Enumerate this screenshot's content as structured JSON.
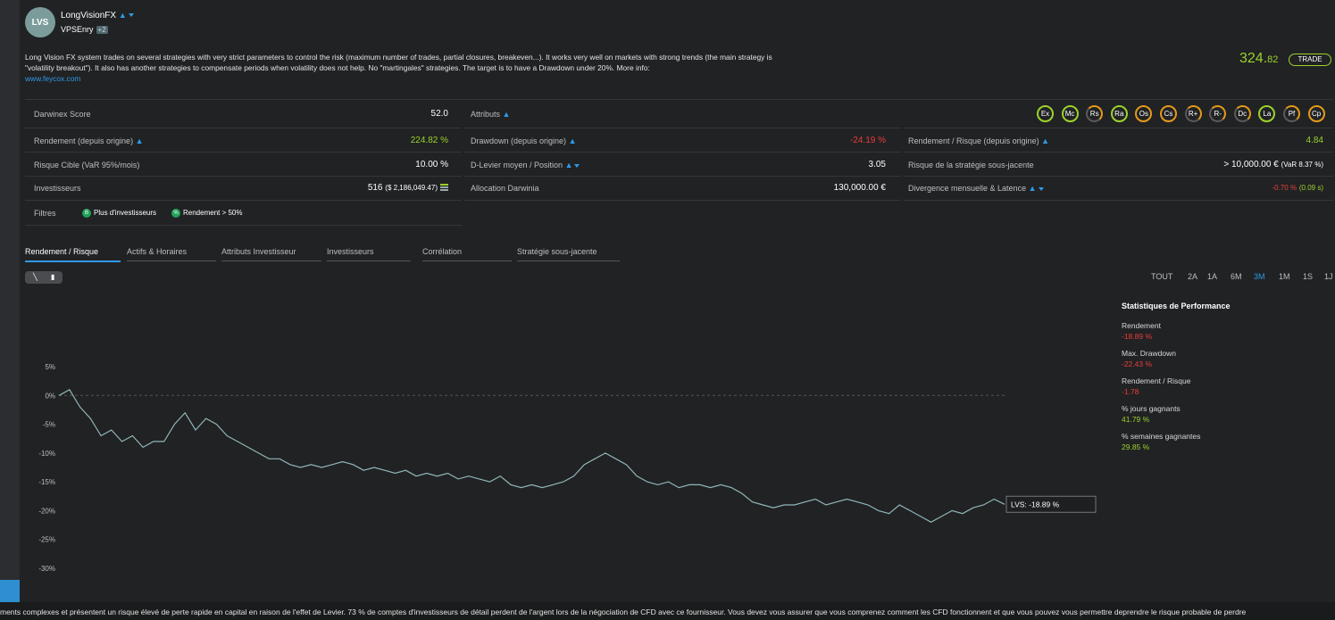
{
  "header": {
    "avatar": "LVS",
    "name": "LongVisionFX",
    "owner": "VPSEnry",
    "owner_badge": "+2",
    "description": "Long Vision FX system trades on several strategies with very strict parameters to control the risk (maximum number of trades, partial closures, breakeven...). It works very well on markets with strong trends (the main strategy is \"volatility breakout\"). It also has another strategies to compensate periods when volatility does not help. No \"martingales\" strategies. The target is to have a Drawdown under 20%. More info:",
    "link": "www.feycox.com",
    "price_main": "324.",
    "price_dec": "82",
    "trade_label": "TRADE"
  },
  "stats": {
    "score_label": "Darwinex Score",
    "score_value": "52.0",
    "attributes_label": "Attributs",
    "attributes": [
      {
        "code": "Ex",
        "color": "green"
      },
      {
        "code": "Mc",
        "color": "green"
      },
      {
        "code": "Rs",
        "color": "half"
      },
      {
        "code": "Ra",
        "color": "green"
      },
      {
        "code": "Os",
        "color": "orange"
      },
      {
        "code": "Cs",
        "color": "orange"
      },
      {
        "code": "R+",
        "color": "half"
      },
      {
        "code": "R-",
        "color": "half"
      },
      {
        "code": "Dc",
        "color": "half"
      },
      {
        "code": "La",
        "color": "green"
      },
      {
        "code": "Pf",
        "color": "half"
      },
      {
        "code": "Cp",
        "color": "orange"
      }
    ],
    "return_label": "Rendement (depuis origine)",
    "return_value": "224.82 %",
    "drawdown_label": "Drawdown (depuis origine)",
    "drawdown_value": "-24.19 %",
    "rr_label": "Rendement / Risque (depuis origine)",
    "rr_value": "4.84",
    "risk_label": "Risque Cible (VaR 95%/mois)",
    "risk_value": "10.00 %",
    "leverage_label": "D-Levier moyen / Position",
    "leverage_value": "3.05",
    "strategy_risk_label": "Risque de la stratégie sous-jacente",
    "strategy_risk_value": "> 10,000.00 €",
    "strategy_risk_var": "(VaR 8.37 %)",
    "investors_label": "Investisseurs",
    "investors_value": "516",
    "investors_amount": "($ 2,186,049.47)",
    "allocation_label": "Allocation Darwinia",
    "allocation_value": "130,000.00 €",
    "divergence_label": "Divergence mensuelle & Latence",
    "divergence_value": "-0.70 %",
    "latency_value": "(0.09 s)",
    "filters_label": "Filtres",
    "filter1": "Plus d'investisseurs",
    "filter2": "Rendement > 50%"
  },
  "tabs": [
    "Rendement / Risque",
    "Actifs & Horaires",
    "Attributs Investisseur",
    "Investisseurs",
    "Corrélation",
    "Stratégie sous-jacente"
  ],
  "ranges": [
    "TOUT",
    "2A",
    "1A",
    "6M",
    "3M",
    "1M",
    "1S",
    "1J"
  ],
  "active_range": "3M",
  "chart_data": {
    "type": "line",
    "series": [
      {
        "name": "LVS",
        "values": [
          0,
          1,
          -2,
          -4,
          -7,
          -6,
          -8,
          -7,
          -9,
          -8,
          -8,
          -5,
          -3,
          -6,
          -4,
          -5,
          -7,
          -8,
          -9,
          -10,
          -11,
          -11,
          -12,
          -12.5,
          -12,
          -12.5,
          -12,
          -11.5,
          -12,
          -13,
          -12.5,
          -13,
          -13.5,
          -13,
          -14,
          -13.5,
          -14,
          -13.5,
          -14.5,
          -14,
          -14.5,
          -15,
          -14,
          -15.5,
          -16,
          -15.5,
          -16,
          -15.5,
          -15,
          -14,
          -12,
          -11,
          -10,
          -11,
          -12,
          -14,
          -15,
          -15.5,
          -15,
          -16,
          -15.5,
          -15.5,
          -16,
          -15.5,
          -16,
          -17,
          -18.5,
          -19,
          -19.5,
          -19,
          -19,
          -18.5,
          -18,
          -19,
          -18.5,
          -18,
          -18.5,
          -19,
          -20,
          -20.5,
          -19,
          -20,
          -21,
          -22,
          -21,
          -20,
          -20.5,
          -19.5,
          -19,
          -18,
          -18.89
        ]
      }
    ],
    "ylim": [
      -30,
      5
    ],
    "yticks": [
      "5%",
      "0%",
      "-5%",
      "-10%",
      "-15%",
      "-20%",
      "-25%",
      "-30%"
    ],
    "tooltip": "LVS: -18.89 %"
  },
  "performance": {
    "title": "Statistiques de Performance",
    "items": [
      {
        "label": "Rendement",
        "value": "-18.89 %",
        "color": "red"
      },
      {
        "label": "Max. Drawdown",
        "value": "-22.43 %",
        "color": "red"
      },
      {
        "label": "Rendement / Risque",
        "value": "-1.78",
        "color": "red"
      },
      {
        "label": "% jours gagnants",
        "value": "41.79 %",
        "color": "green"
      },
      {
        "label": "% semaines gagnantes",
        "value": "29.85 %",
        "color": "green"
      }
    ]
  },
  "disclaimer": "ments complexes et présentent un risque élevé de perte rapide en capital en raison de l'effet de Levier. 73 % de comptes d'investisseurs de détail perdent de l'argent lors de la négociation de CFD avec ce fournisseur. Vous devez vous assurer que vous comprenez comment les CFD fonctionnent et que vous pouvez vous permettre deprendre le risque probable de perdre"
}
